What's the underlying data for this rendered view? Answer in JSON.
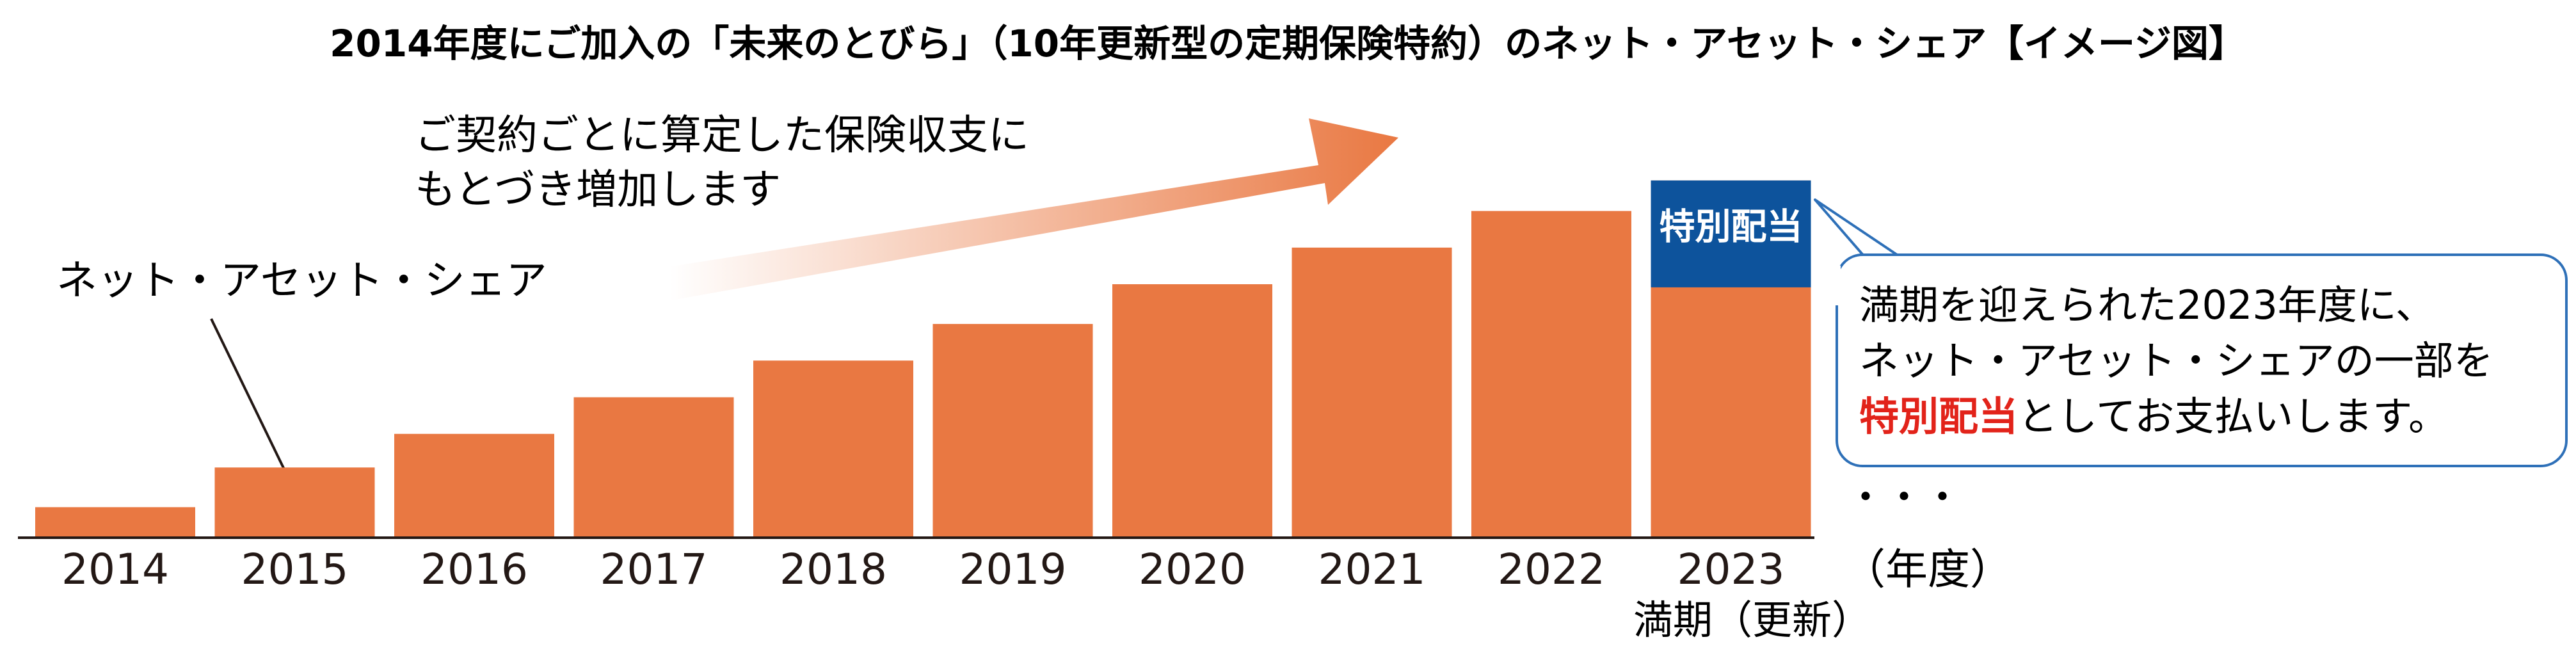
{
  "title": "2014年度にご加入の「未来のとびら」（10年更新型の定期保険特約）のネット・アセット・シェア【イメージ図】",
  "colors": {
    "bar": "#E97842",
    "special_box": "#0D539C",
    "red_text": "#E2231A",
    "callout_border": "#2E70B8",
    "text": "#231815",
    "arrow_start": "#FFFFFF",
    "arrow_end": "#E97842"
  },
  "chart_data": {
    "type": "bar",
    "categories": [
      "2014",
      "2015",
      "2016",
      "2017",
      "2018",
      "2019",
      "2020",
      "2021",
      "2022",
      "2023"
    ],
    "values": [
      1.0,
      2.3,
      3.4,
      4.6,
      5.8,
      7.0,
      8.3,
      9.5,
      10.7,
      11.7
    ],
    "special_dividend": {
      "category": "2023",
      "value": 3.5,
      "label": "特別配当"
    },
    "series_label": "ネット・アセット・シェア",
    "x_unit_label": "（年度）",
    "last_category_note": "満期（更新）",
    "continuation": "・・・",
    "ylim": [
      0,
      12.2
    ],
    "yaxis_visible": false,
    "grid": false
  },
  "arrow_annotation": {
    "lines": [
      "ご契約ごとに算定した保険収支に",
      "もとづき増加します"
    ],
    "gradient_direction": "left-to-right (white to orange)"
  },
  "callout": {
    "line1": "満期を迎えられた2023年度に、",
    "line2": "ネット・アセット・シェアの一部を",
    "line3_highlight": "特別配当",
    "line3_rest": "としてお支払いします。"
  }
}
